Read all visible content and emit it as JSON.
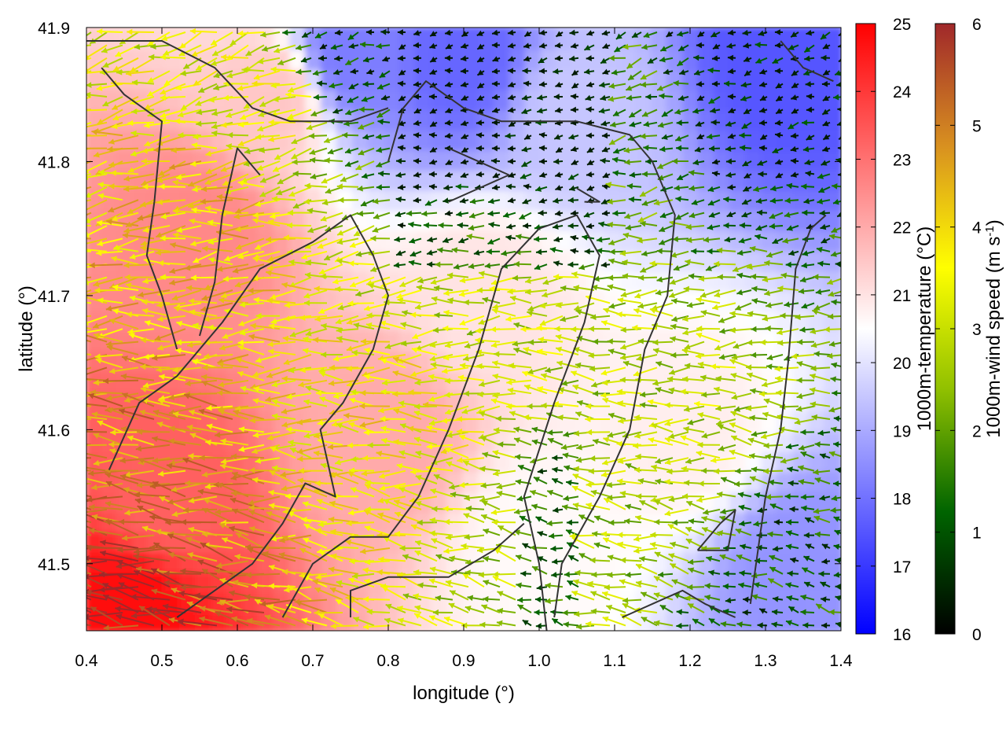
{
  "chart_data": {
    "type": "heatmap",
    "title": "",
    "xlabel": "longitude (°)",
    "ylabel": "latitude (°)",
    "xlim": [
      0.4,
      1.4
    ],
    "ylim": [
      41.45,
      41.9
    ],
    "x_ticks": [
      "0.4",
      "0.5",
      "0.6",
      "0.7",
      "0.8",
      "0.9",
      "1.0",
      "1.1",
      "1.2",
      "1.3",
      "1.4"
    ],
    "y_ticks": [
      "41.5",
      "41.6",
      "41.7",
      "41.8",
      "41.9"
    ],
    "temperature_colorbar": {
      "label": "1000m-temperature (°C)",
      "range": [
        16,
        25
      ],
      "ticks": [
        "16",
        "17",
        "18",
        "19",
        "20",
        "21",
        "22",
        "23",
        "24",
        "25"
      ],
      "colors": [
        "#0000ff",
        "#ffffff",
        "#ff0000"
      ]
    },
    "wind_colorbar": {
      "label_main": "1000m-wind speed (m s",
      "label_sup": "-1",
      "label_end": ")",
      "range": [
        0,
        6
      ],
      "ticks": [
        "0",
        "1",
        "2",
        "3",
        "4",
        "5",
        "6"
      ],
      "colors": [
        "#000000",
        "#006400",
        "#90c000",
        "#ffff00",
        "#d89020",
        "#a0282a"
      ]
    },
    "temperature_field_samples": [
      {
        "lon": 0.45,
        "lat": 41.47,
        "t": 24.8
      },
      {
        "lon": 0.5,
        "lat": 41.55,
        "t": 23.3
      },
      {
        "lon": 0.55,
        "lat": 41.75,
        "t": 22.6
      },
      {
        "lon": 0.65,
        "lat": 41.85,
        "t": 21.5
      },
      {
        "lon": 0.75,
        "lat": 41.88,
        "t": 18.2
      },
      {
        "lon": 0.8,
        "lat": 41.6,
        "t": 22.0
      },
      {
        "lon": 0.9,
        "lat": 41.88,
        "t": 17.8
      },
      {
        "lon": 0.93,
        "lat": 41.7,
        "t": 21.0
      },
      {
        "lon": 1.0,
        "lat": 41.52,
        "t": 20.6
      },
      {
        "lon": 1.05,
        "lat": 41.84,
        "t": 19.5
      },
      {
        "lon": 1.2,
        "lat": 41.6,
        "t": 20.8
      },
      {
        "lon": 1.33,
        "lat": 41.88,
        "t": 17.5
      },
      {
        "lon": 1.35,
        "lat": 41.5,
        "t": 18.6
      }
    ],
    "contours": [
      [
        [
          0.4,
          41.89
        ],
        [
          0.5,
          41.89
        ],
        [
          0.57,
          41.87
        ],
        [
          0.62,
          41.84
        ],
        [
          0.67,
          41.83
        ],
        [
          0.75,
          41.83
        ],
        [
          0.8,
          41.84
        ]
      ],
      [
        [
          0.43,
          41.57
        ],
        [
          0.47,
          41.62
        ],
        [
          0.52,
          41.64
        ],
        [
          0.58,
          41.68
        ],
        [
          0.63,
          41.72
        ],
        [
          0.7,
          41.74
        ],
        [
          0.75,
          41.76
        ],
        [
          0.78,
          41.73
        ],
        [
          0.8,
          41.7
        ],
        [
          0.78,
          41.66
        ],
        [
          0.74,
          41.62
        ],
        [
          0.71,
          41.6
        ],
        [
          0.73,
          41.55
        ],
        [
          0.69,
          41.56
        ],
        [
          0.66,
          41.53
        ],
        [
          0.62,
          41.5
        ],
        [
          0.52,
          41.46
        ]
      ],
      [
        [
          0.52,
          41.66
        ],
        [
          0.5,
          41.7
        ],
        [
          0.48,
          41.73
        ],
        [
          0.49,
          41.77
        ],
        [
          0.5,
          41.83
        ],
        [
          0.45,
          41.85
        ],
        [
          0.42,
          41.87
        ]
      ],
      [
        [
          0.55,
          41.67
        ],
        [
          0.57,
          41.71
        ],
        [
          0.58,
          41.76
        ],
        [
          0.6,
          41.81
        ],
        [
          0.63,
          41.79
        ]
      ],
      [
        [
          0.66,
          41.46
        ],
        [
          0.7,
          41.5
        ],
        [
          0.75,
          41.52
        ],
        [
          0.8,
          41.52
        ],
        [
          0.84,
          41.55
        ],
        [
          0.88,
          41.6
        ],
        [
          0.92,
          41.66
        ],
        [
          0.95,
          41.72
        ],
        [
          1.0,
          41.75
        ],
        [
          1.05,
          41.76
        ],
        [
          1.08,
          41.73
        ],
        [
          1.06,
          41.68
        ],
        [
          1.02,
          41.62
        ],
        [
          0.98,
          41.55
        ],
        [
          1.0,
          41.5
        ],
        [
          1.01,
          41.45
        ]
      ],
      [
        [
          0.75,
          41.46
        ],
        [
          0.75,
          41.48
        ],
        [
          0.8,
          41.49
        ],
        [
          0.88,
          41.49
        ],
        [
          0.94,
          41.51
        ],
        [
          0.98,
          41.53
        ]
      ],
      [
        [
          0.8,
          41.8
        ],
        [
          0.82,
          41.84
        ],
        [
          0.85,
          41.86
        ],
        [
          0.9,
          41.84
        ],
        [
          0.95,
          41.83
        ],
        [
          1.05,
          41.83
        ],
        [
          1.12,
          41.82
        ],
        [
          1.15,
          41.8
        ],
        [
          1.18,
          41.76
        ],
        [
          1.17,
          41.7
        ],
        [
          1.14,
          41.66
        ],
        [
          1.12,
          41.6
        ],
        [
          1.08,
          41.55
        ],
        [
          1.05,
          41.52
        ],
        [
          1.03,
          41.5
        ],
        [
          1.02,
          41.46
        ]
      ],
      [
        [
          0.88,
          41.77
        ],
        [
          0.92,
          41.78
        ],
        [
          0.96,
          41.79
        ],
        [
          0.92,
          41.8
        ],
        [
          0.88,
          41.81
        ]
      ],
      [
        [
          1.05,
          41.78
        ],
        [
          1.08,
          41.77
        ],
        [
          1.06,
          41.77
        ]
      ],
      [
        [
          1.11,
          41.46
        ],
        [
          1.15,
          41.47
        ],
        [
          1.19,
          41.48
        ],
        [
          1.22,
          41.47
        ],
        [
          1.26,
          41.46
        ]
      ],
      [
        [
          1.21,
          41.51
        ],
        [
          1.25,
          41.51
        ],
        [
          1.26,
          41.54
        ],
        [
          1.24,
          41.53
        ],
        [
          1.21,
          41.51
        ]
      ],
      [
        [
          1.28,
          41.47
        ],
        [
          1.3,
          41.55
        ],
        [
          1.32,
          41.6
        ],
        [
          1.33,
          41.65
        ],
        [
          1.34,
          41.72
        ],
        [
          1.36,
          41.75
        ],
        [
          1.38,
          41.76
        ]
      ],
      [
        [
          1.32,
          41.89
        ],
        [
          1.35,
          41.87
        ],
        [
          1.39,
          41.86
        ]
      ]
    ],
    "wind_field": {
      "flow": "predominantly westward",
      "speed_range": [
        0,
        6
      ]
    }
  }
}
